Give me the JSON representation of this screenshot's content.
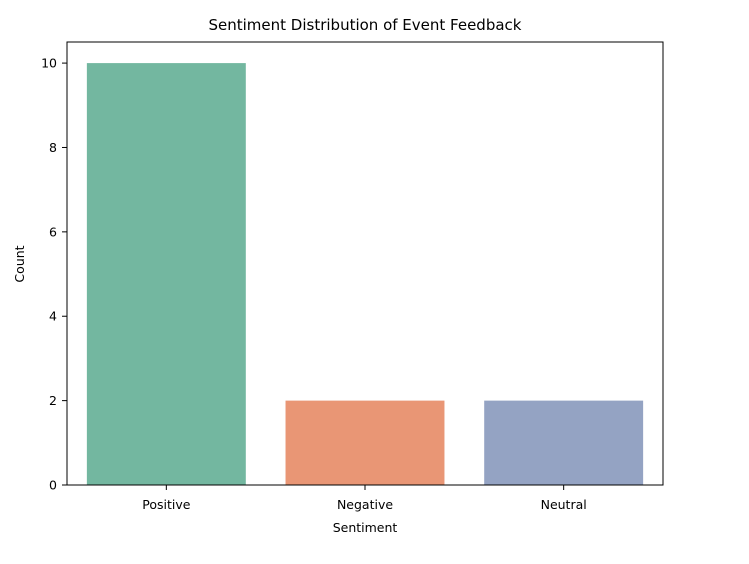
{
  "chart_data": {
    "type": "bar",
    "title": "Sentiment Distribution of Event Feedback",
    "xlabel": "Sentiment",
    "ylabel": "Count",
    "categories": [
      "Positive",
      "Negative",
      "Neutral"
    ],
    "values": [
      10,
      2,
      2
    ],
    "colors": [
      "#73b7a0",
      "#e99675",
      "#94a3c3"
    ],
    "ylim": [
      0,
      10.5
    ],
    "yticks": [
      0,
      2,
      4,
      6,
      8,
      10
    ],
    "grid": false,
    "legend": "none"
  }
}
